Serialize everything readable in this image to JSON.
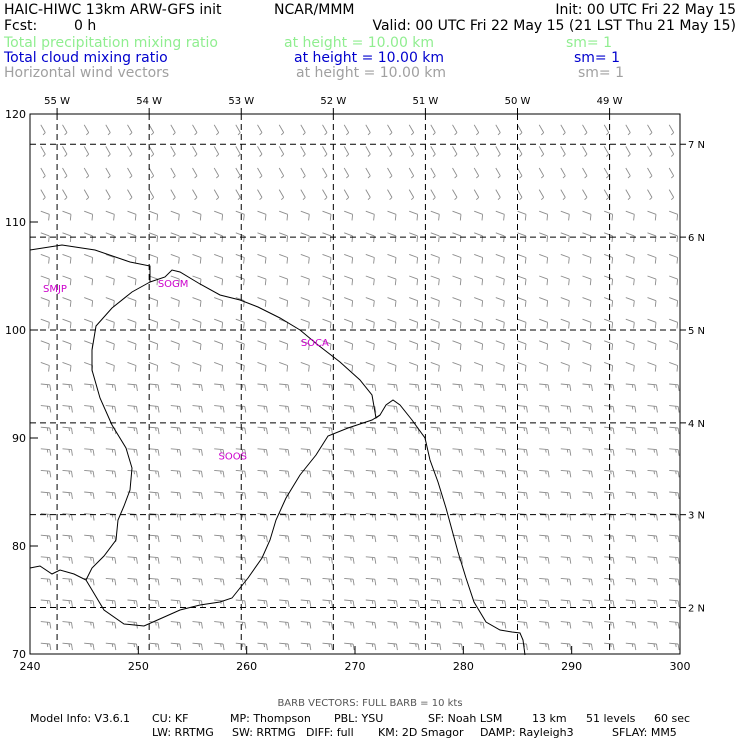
{
  "header": {
    "title": "HAIC-HIWC 13km ARW-GFS init",
    "org": "NCAR/MMM",
    "init": "Init: 00 UTC Fri 22 May 15",
    "fcst_label": "Fcst:",
    "fcst_value": "0 h",
    "valid": "Valid: 00 UTC Fri 22 May 15 (21 LST Thu 21 May 15)",
    "fields": [
      {
        "name": "Total precipitation mixing ratio",
        "height": "at height = 10.00 km",
        "sm": "sm= 1",
        "color": "#90ee90"
      },
      {
        "name": "Total cloud mixing ratio",
        "height": "at height = 10.00 km",
        "sm": "sm= 1",
        "color": "#0000cd"
      },
      {
        "name": "Horizontal wind vectors",
        "height": "at height = 10.00 km",
        "sm": "sm= 1",
        "color": "#a0a0a0"
      }
    ]
  },
  "map": {
    "x_ticks": [
      {
        "value": "240",
        "x": 240
      },
      {
        "value": "250",
        "x": 250
      },
      {
        "value": "260",
        "x": 260
      },
      {
        "value": "270",
        "x": 270
      },
      {
        "value": "280",
        "x": 280
      },
      {
        "value": "290",
        "x": 290
      },
      {
        "value": "300",
        "x": 300
      }
    ],
    "y_ticks": [
      {
        "value": "70",
        "y": 70
      },
      {
        "value": "80",
        "y": 80
      },
      {
        "value": "90",
        "y": 90
      },
      {
        "value": "100",
        "y": 100
      },
      {
        "value": "110",
        "y": 110
      },
      {
        "value": "120",
        "y": 120
      }
    ],
    "lon_labels": [
      {
        "value": "55 W",
        "x": 242.5
      },
      {
        "value": "54 W",
        "x": 251.0
      },
      {
        "value": "53 W",
        "x": 259.5
      },
      {
        "value": "52 W",
        "x": 268.0
      },
      {
        "value": "51 W",
        "x": 276.5
      },
      {
        "value": "50 W",
        "x": 285.0
      },
      {
        "value": "49 W",
        "x": 293.5
      }
    ],
    "lat_labels": [
      {
        "value": "7 N",
        "y": 117.2
      },
      {
        "value": "6 N",
        "y": 108.6
      },
      {
        "value": "5 N",
        "y": 100.0
      },
      {
        "value": "4 N",
        "y": 91.4
      },
      {
        "value": "3 N",
        "y": 82.9
      },
      {
        "value": "2 N",
        "y": 74.3
      }
    ],
    "stations": [
      {
        "id": "SMJP",
        "x": 241.2,
        "y": 103.5
      },
      {
        "id": "SOCA",
        "x": 265.0,
        "y": 98.5
      },
      {
        "id": "SOOS",
        "x": 257.4,
        "y": 88.0
      },
      {
        "id": "SOGM",
        "x": 251.8,
        "y": 104.0
      }
    ],
    "station_color": "#cc00cc",
    "wind_regions": [
      {
        "name": "north",
        "dir_deg": 150,
        "speed_kt": 5,
        "y_from": 112,
        "y_to": 120
      },
      {
        "name": "middle",
        "dir_deg": 110,
        "speed_kt": 10,
        "y_from": 96,
        "y_to": 112
      },
      {
        "name": "south",
        "dir_deg": 95,
        "speed_kt": 15,
        "y_from": 70,
        "y_to": 96
      }
    ]
  },
  "footer": {
    "barb_note": "BARB VECTORS:  FULL BARB = 10 kts",
    "line1": [
      "Model Info: V3.6.1",
      "CU: KF",
      "MP: Thompson",
      "PBL: YSU",
      "SF: Noah LSM",
      "13 km",
      "51 levels",
      "60 sec"
    ],
    "line2": [
      "LW: RRTMG",
      "SW: RRTMG",
      "DIFF: full",
      "KM: 2D Smagor",
      "DAMP: Rayleigh3",
      "SFLAY: MM5"
    ]
  }
}
